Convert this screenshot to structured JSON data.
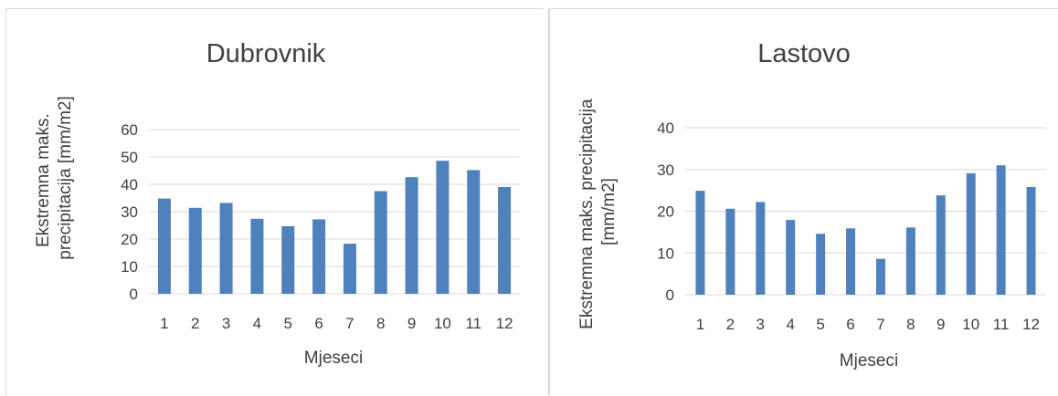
{
  "chart_data": [
    {
      "type": "bar",
      "title": "Dubrovnik",
      "xlabel": "Mjeseci",
      "ylabel": [
        "Ekstremna maks.",
        "precipitacija [mm/m2]"
      ],
      "categories": [
        "1",
        "2",
        "3",
        "4",
        "5",
        "6",
        "7",
        "8",
        "9",
        "10",
        "11",
        "12"
      ],
      "values": [
        34.8,
        31.4,
        33.2,
        27.4,
        24.7,
        27.2,
        18.3,
        37.5,
        42.6,
        48.6,
        45.2,
        39.0
      ],
      "ylim": [
        0,
        60
      ],
      "yticks": [
        0,
        10,
        20,
        30,
        40,
        50,
        60
      ],
      "grid": true,
      "legend": "none",
      "color": "#4f81bd"
    },
    {
      "type": "bar",
      "title": "Lastovo",
      "xlabel": "Mjeseci",
      "ylabel": [
        "Ekstremna maks. precipitacija",
        "[mm/m2]"
      ],
      "categories": [
        "1",
        "2",
        "3",
        "4",
        "5",
        "6",
        "7",
        "8",
        "9",
        "10",
        "11",
        "12"
      ],
      "values": [
        24.9,
        20.6,
        22.2,
        17.9,
        14.6,
        15.9,
        8.6,
        16.1,
        23.8,
        29.1,
        31.0,
        25.8
      ],
      "ylim": [
        0,
        40
      ],
      "yticks": [
        0,
        10,
        20,
        30,
        40
      ],
      "grid": true,
      "legend": "none",
      "color": "#4f81bd"
    }
  ]
}
